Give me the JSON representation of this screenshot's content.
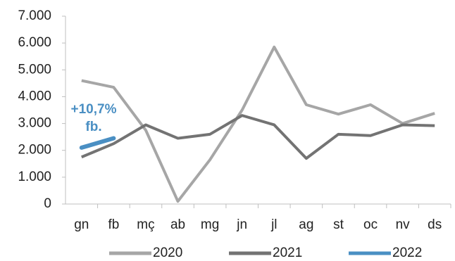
{
  "chart_data": {
    "type": "line",
    "categories": [
      "gn",
      "fb",
      "mç",
      "ab",
      "mg",
      "jn",
      "jl",
      "ag",
      "st",
      "oc",
      "nv",
      "ds"
    ],
    "series": [
      {
        "name": "2020",
        "color": "#a6a6a6",
        "values": [
          4600,
          4350,
          2750,
          100,
          1650,
          3500,
          5850,
          3700,
          3350,
          3700,
          3000,
          3380
        ]
      },
      {
        "name": "2021",
        "color": "#737373",
        "values": [
          1750,
          2250,
          2950,
          2450,
          2600,
          3300,
          2950,
          1700,
          2600,
          2550,
          2950,
          2920
        ]
      },
      {
        "name": "2022",
        "color": "#4a8fc3",
        "values": [
          2100,
          2450,
          null,
          null,
          null,
          null,
          null,
          null,
          null,
          null,
          null,
          null
        ]
      }
    ],
    "annotation": [
      "+10,7%",
      "fb."
    ],
    "ylim": [
      0,
      7000
    ],
    "yticks": [
      0,
      {
        "value": 1000,
        "label": "1.000"
      },
      {
        "value": 2000,
        "label": "2.000"
      },
      {
        "value": 3000,
        "label": "3.000"
      },
      {
        "value": 4000,
        "label": "4.000"
      },
      {
        "value": 5000,
        "label": "5.000"
      },
      {
        "value": 6000,
        "label": "6.000"
      },
      {
        "value": 7000,
        "label": "7.000"
      }
    ],
    "grid": false,
    "legend": "bottom"
  }
}
